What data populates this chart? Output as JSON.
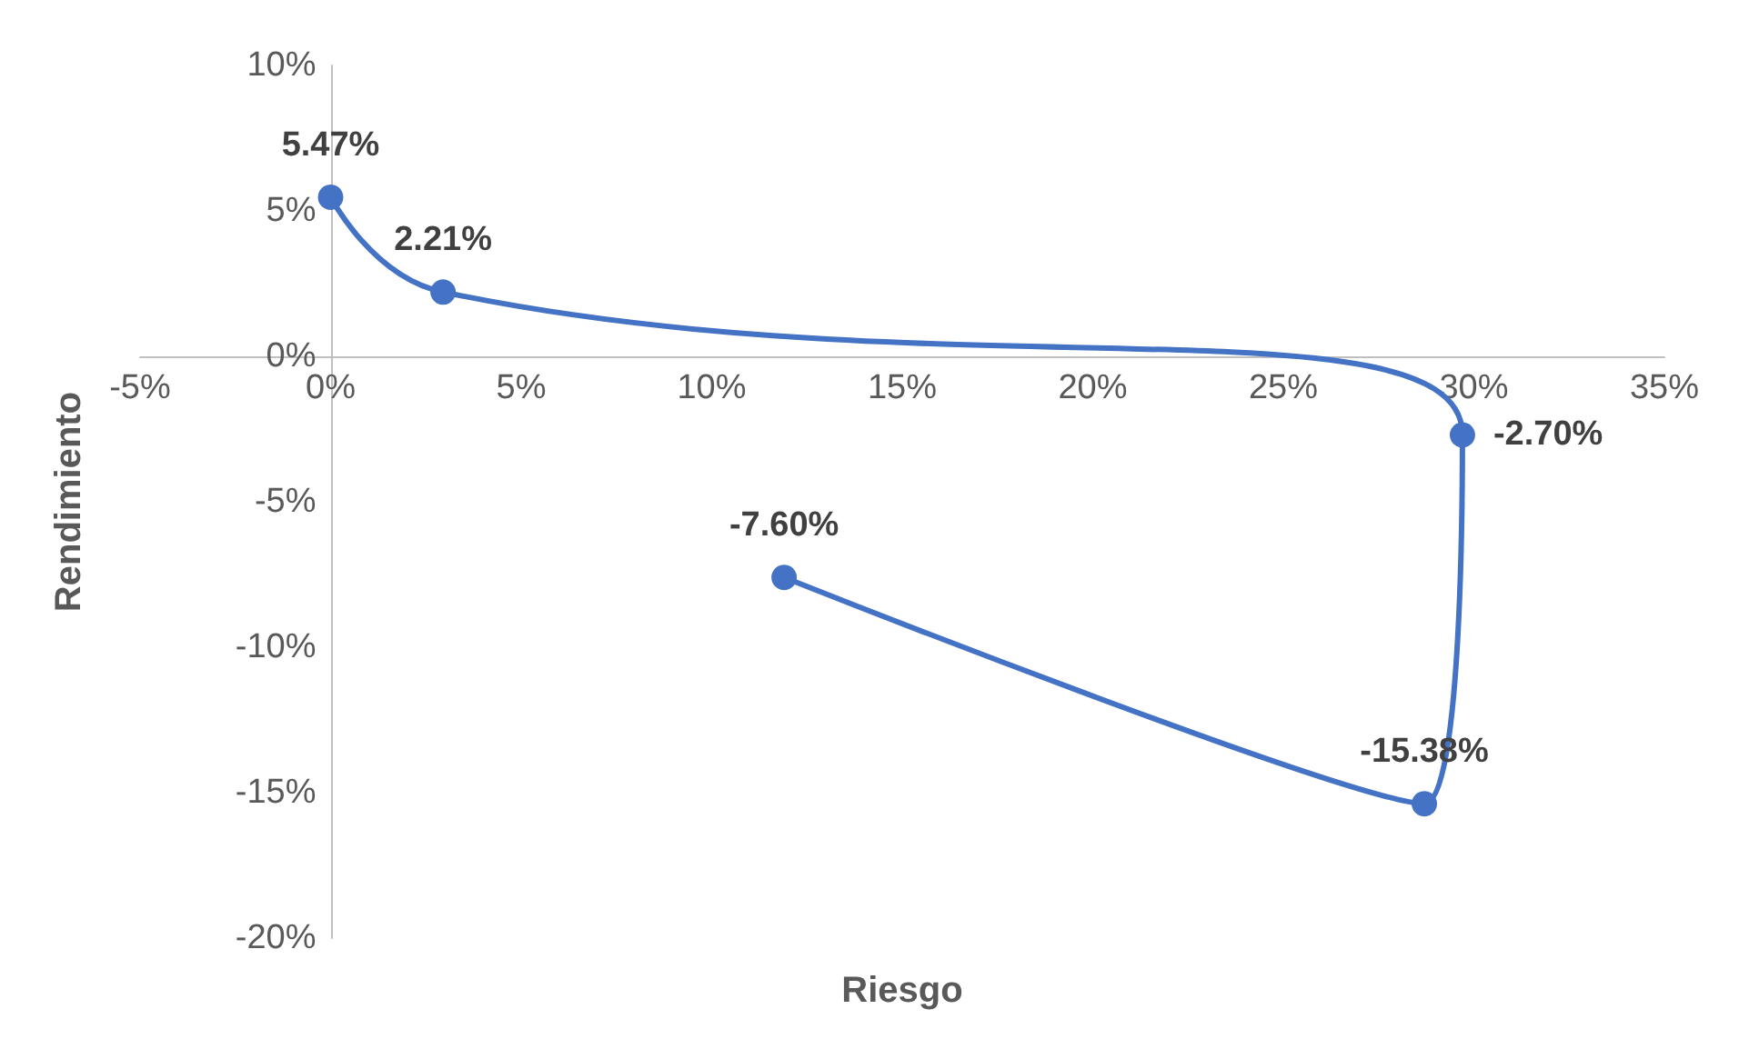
{
  "chart_data": {
    "type": "line",
    "xlabel": "Riesgo",
    "ylabel": "Rendimiento",
    "series": [
      {
        "color": "#4472c4",
        "x": [
          0,
          2.95,
          29.7,
          28.7,
          11.9
        ],
        "values": [
          5.47,
          2.21,
          -2.7,
          -15.38,
          -7.6
        ],
        "value_labels": [
          "5.47%",
          "2.21%",
          "-2.70%",
          "-15.38%",
          "-7.60%"
        ]
      }
    ],
    "xlim": [
      -5,
      35
    ],
    "xticks": [
      {
        "value": -5,
        "label": "-5%"
      },
      {
        "value": 0,
        "label": "0%"
      },
      {
        "value": 5,
        "label": "5%"
      },
      {
        "value": 10,
        "label": "10%"
      },
      {
        "value": 15,
        "label": "15%"
      },
      {
        "value": 20,
        "label": "20%"
      },
      {
        "value": 25,
        "label": "25%"
      },
      {
        "value": 30,
        "label": "30%"
      },
      {
        "value": 35,
        "label": "35%"
      }
    ],
    "ylim": [
      -20,
      10
    ],
    "yticks": [
      {
        "value": -20,
        "label": "-20%"
      },
      {
        "value": -15,
        "label": "-15%"
      },
      {
        "value": -10,
        "label": "-10%"
      },
      {
        "value": -5,
        "label": "-5%"
      },
      {
        "value": 0,
        "label": "0%"
      },
      {
        "value": 5,
        "label": "5%"
      },
      {
        "value": 10,
        "label": "10%"
      }
    ],
    "grid": false,
    "marker": "circle",
    "line_style": "solid"
  }
}
